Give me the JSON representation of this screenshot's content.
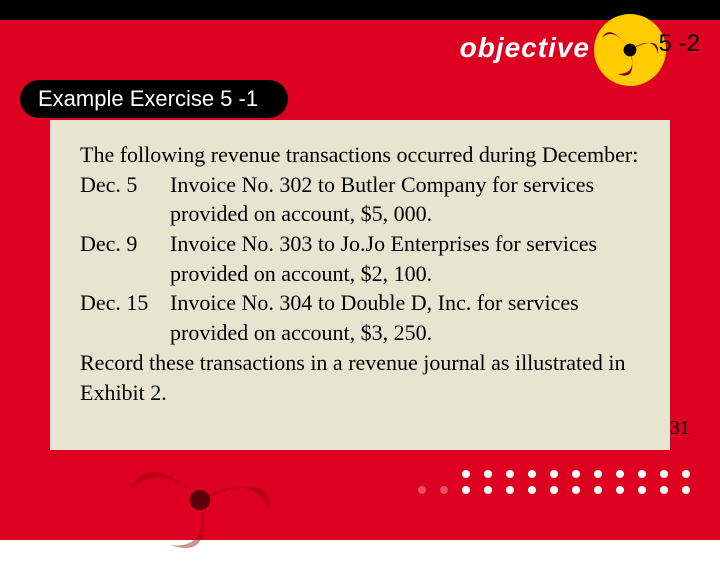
{
  "header": {
    "brand_text": "objective",
    "section_number": "5 -2"
  },
  "pill": {
    "label": "Example Exercise 5 -1"
  },
  "content": {
    "intro": "The following revenue transactions occurred during December:",
    "entries": [
      {
        "date": "Dec. 5",
        "desc": "Invoice No. 302 to Butler Company for services provided on account, $5, 000."
      },
      {
        "date": "Dec. 9",
        "desc": "Invoice No. 303 to Jo.Jo Enterprises for services provided on account, $2, 100."
      },
      {
        "date": "Dec. 15",
        "desc": "Invoice No. 304 to Double D, Inc. for services provided on account, $3, 250."
      }
    ],
    "conclusion": "Record these transactions in a revenue journal as illustrated in Exhibit 2."
  },
  "page_number": "31",
  "colors": {
    "slide_bg": "#dd0020",
    "content_bg": "#e8e4d0",
    "pill_bg": "#000000",
    "pill_text": "#ffffff",
    "swirl_yellow": "#ffcc00",
    "swirl_dark": "#8b0000"
  }
}
